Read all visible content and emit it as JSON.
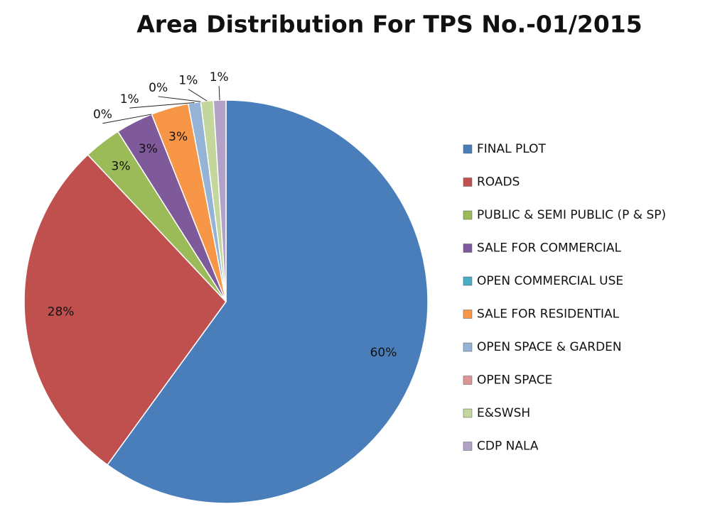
{
  "chart_data": {
    "type": "pie",
    "title": "Area Distribution For TPS No.-01/2015",
    "categories": [
      "FINAL PLOT",
      "ROADS",
      "PUBLIC & SEMI PUBLIC (P & SP)",
      "SALE FOR COMMERCIAL",
      "OPEN COMMERCIAL USE",
      "SALE FOR RESIDENTIAL",
      "OPEN SPACE & GARDEN",
      "OPEN SPACE",
      "E&SWSH",
      "CDP NALA"
    ],
    "values": [
      60,
      28,
      3,
      3,
      0,
      3,
      1,
      0,
      1,
      1
    ],
    "value_labels": [
      "60%",
      "28%",
      "3%",
      "3%",
      "0%",
      "3%",
      "1%",
      "0%",
      "1%",
      "1%"
    ],
    "colors": [
      "#4a7ebb",
      "#c0504d",
      "#9bbb59",
      "#7e5a9b",
      "#4bacc6",
      "#f79646",
      "#95b3d7",
      "#d99694",
      "#c3d69b",
      "#b3a2c7"
    ],
    "legend": "right"
  }
}
